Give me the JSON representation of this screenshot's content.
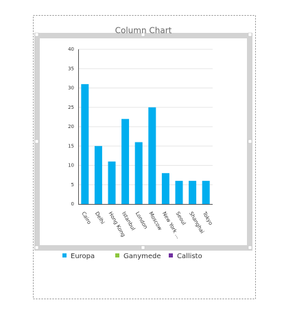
{
  "chart_data": {
    "type": "bar",
    "title": "Column Chart",
    "categories": [
      "Cairo",
      "Delhi",
      "Hong Kong",
      "Istanbul",
      "London",
      "Moscow",
      "New York ...",
      "Seoul",
      "Shanghai",
      "Tokyo"
    ],
    "series": [
      {
        "name": "Europa",
        "color": "#00aeef",
        "values": [
          31,
          15,
          11,
          22,
          16,
          25,
          8,
          6,
          6,
          6
        ]
      },
      {
        "name": "Ganymede",
        "color": "#8dc63f",
        "values": [
          null,
          null,
          null,
          null,
          null,
          null,
          null,
          null,
          null,
          null
        ]
      },
      {
        "name": "Callisto",
        "color": "#7030a0",
        "values": [
          null,
          null,
          null,
          null,
          null,
          null,
          null,
          null,
          null,
          null
        ]
      }
    ],
    "ylim": [
      0,
      40
    ],
    "yticks": [
      0,
      5,
      10,
      15,
      20,
      25,
      30,
      35,
      40
    ],
    "grid": true,
    "legend": "bottom"
  }
}
